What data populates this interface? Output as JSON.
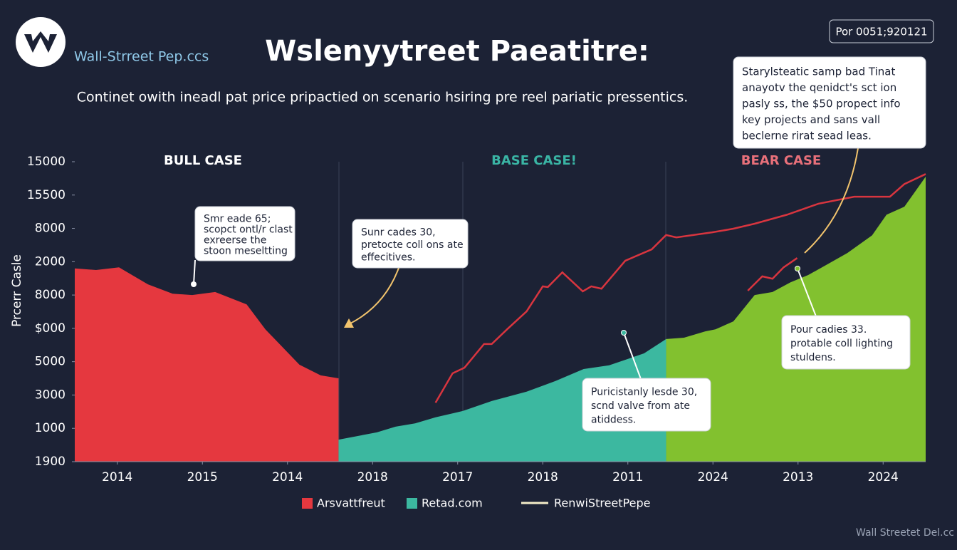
{
  "header": {
    "logo_text": "Wall-Strreet Pep.ccs",
    "title": "Wslenyytreet Paeatitre:",
    "badge": "Por 0051;920121",
    "subtitle": "Continet owith ineadl pat price pripactied on scenario hsiring pre reel pariatic pressentics."
  },
  "footer": "Wall Streetet Del.cc",
  "chart_data": {
    "type": "area",
    "y_label": "Prcerr Casle",
    "xlim": [
      0,
      10
    ],
    "xticks": [
      {
        "value": 0.5,
        "label": "2014"
      },
      {
        "value": 1.5,
        "label": "2015"
      },
      {
        "value": 2.5,
        "label": "2014"
      },
      {
        "value": 3.5,
        "label": "2018"
      },
      {
        "value": 4.5,
        "label": "2017"
      },
      {
        "value": 5.5,
        "label": "2018"
      },
      {
        "value": 6.5,
        "label": "2011"
      },
      {
        "value": 7.5,
        "label": "2024"
      },
      {
        "value": 8.5,
        "label": "2013"
      },
      {
        "value": 9.5,
        "label": "2024"
      }
    ],
    "ylim": [
      0,
      9
    ],
    "yticks": [
      {
        "value": 0,
        "label": "1900"
      },
      {
        "value": 1,
        "label": "1000"
      },
      {
        "value": 2,
        "label": "3000"
      },
      {
        "value": 3,
        "label": "5000"
      },
      {
        "value": 4,
        "label": "$000"
      },
      {
        "value": 5,
        "label": "8000"
      },
      {
        "value": 6,
        "label": "2000"
      },
      {
        "value": 7,
        "label": "8000"
      },
      {
        "value": 8,
        "label": "15500"
      },
      {
        "value": 9,
        "label": "15000"
      }
    ],
    "regions": [
      {
        "label": "BULL CASE",
        "color": "#ffffff"
      },
      {
        "label": "BASE CASE!",
        "color": "#3ab5a5"
      },
      {
        "label": "BEAR CASE",
        "color": "#e8707a"
      }
    ],
    "series": [
      {
        "name": "Arsvattfreut",
        "color": "#e5383f",
        "type": "area",
        "x": [
          0,
          0.25,
          0.52,
          0.86,
          1.15,
          1.38,
          1.65,
          2.02,
          2.24,
          2.64,
          2.89,
          3.1
        ],
        "values": [
          5.8,
          5.75,
          5.83,
          5.32,
          5.04,
          5.0,
          5.09,
          4.72,
          3.97,
          2.91,
          2.59,
          2.5
        ]
      },
      {
        "name": "Retad.com",
        "color": "#3cb8a0",
        "type": "area",
        "x": [
          3.1,
          3.55,
          3.77,
          4.0,
          4.24,
          4.56,
          4.9,
          5.31,
          5.65,
          5.98,
          6.28,
          6.69,
          6.95
        ],
        "values": [
          0.66,
          0.88,
          1.05,
          1.15,
          1.33,
          1.52,
          1.82,
          2.1,
          2.42,
          2.78,
          2.89,
          3.25,
          3.68
        ]
      },
      {
        "color": "#82c12f",
        "type": "area",
        "x": [
          6.95,
          7.16,
          7.41,
          7.53,
          7.74,
          7.99,
          8.2,
          8.41,
          8.62,
          8.83,
          9.08,
          9.37,
          9.54,
          9.75,
          10.0
        ],
        "values": [
          3.68,
          3.72,
          3.91,
          3.97,
          4.21,
          5.0,
          5.09,
          5.38,
          5.6,
          5.9,
          6.26,
          6.79,
          7.41,
          7.65,
          8.55
        ]
      },
      {
        "name": "RenwiStreetPepe",
        "color": "#d8353f",
        "type": "line",
        "x": [
          4.24,
          4.44,
          4.58,
          4.81,
          4.9,
          5.08,
          5.31,
          5.5,
          5.56,
          5.73,
          5.97,
          6.07,
          6.19,
          6.47,
          6.78,
          6.95,
          7.07,
          7.49,
          7.74,
          7.99,
          8.37,
          8.74,
          9.16,
          9.58,
          9.75,
          10.0,
          null,
          7.91,
          8.08,
          8.2,
          8.33,
          8.49
        ],
        "values": [
          1.77,
          2.65,
          2.82,
          3.53,
          3.53,
          3.97,
          4.51,
          5.26,
          5.24,
          5.68,
          5.11,
          5.26,
          5.19,
          6.03,
          6.37,
          6.8,
          6.73,
          6.88,
          6.99,
          7.14,
          7.41,
          7.74,
          7.95,
          7.95,
          8.33,
          8.63,
          null,
          5.13,
          5.56,
          5.49,
          5.83,
          6.11
        ]
      }
    ],
    "annotations": [
      {
        "text": [
          "Smr eade 65;",
          "scopct ontl/r clast",
          "exreerse the",
          "stoon meseltting"
        ]
      },
      {
        "text": [
          "Sunr cades 30,",
          "pretocte coll ons ate",
          "effecitives."
        ]
      },
      {
        "text": [
          "Starylsteatic samp bad Tinat",
          "anayotv the qenidct's sct ion",
          "pasly ss, the $50 propect info",
          "key projects and sans vall",
          "beclerne rirat sead leas."
        ]
      },
      {
        "text": [
          "Puricistanly lesde 30,",
          "scnd valve from ate",
          "atiddess."
        ]
      },
      {
        "text": [
          "Pour cadies 33.",
          "protable coll lighting",
          "stuldens."
        ]
      }
    ]
  }
}
